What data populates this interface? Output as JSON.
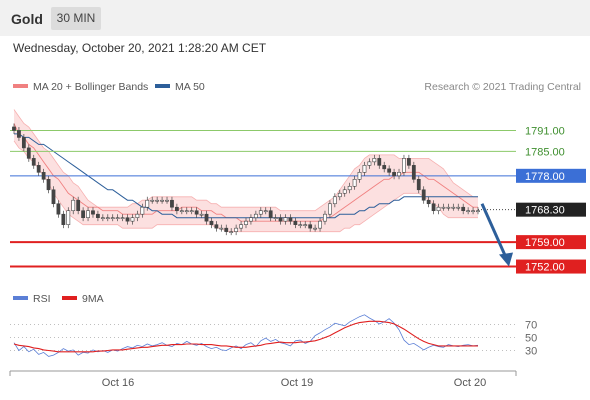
{
  "header": {
    "title": "Gold",
    "timeframe": "30 MIN"
  },
  "datetime": "Wednesday, October 20, 2021 1:28:20 AM CET",
  "legend": {
    "bollinger_label": "MA 20 + Bollinger Bands",
    "ma50_label": "MA 50",
    "credit": "Research © 2021 Trading Central",
    "rsi_label": "RSI",
    "rsi_ma_label": "9MA"
  },
  "colors": {
    "bollinger": "#f08080",
    "ma50": "#2d5f9a",
    "resistance": "#8cc96a",
    "pivot": "#3b6fd6",
    "support": "#e02020",
    "rsi": "#5b7fd6",
    "rsi_ma": "#e02020"
  },
  "chart_data": [
    {
      "type": "candlestick",
      "title": "Gold 30 MIN",
      "x_ticks": [
        "Oct 16",
        "Oct 19",
        "Oct 20"
      ],
      "ylim": [
        1747,
        1796
      ],
      "current_price": 1768.3,
      "levels": [
        {
          "label": "1791.00",
          "value": 1791.0,
          "kind": "resistance"
        },
        {
          "label": "1785.00",
          "value": 1785.0,
          "kind": "resistance"
        },
        {
          "label": "1778.00",
          "value": 1778.0,
          "kind": "pivot"
        },
        {
          "label": "1768.30",
          "value": 1768.3,
          "kind": "last"
        },
        {
          "label": "1759.00",
          "value": 1759.0,
          "kind": "support"
        },
        {
          "label": "1752.00",
          "value": 1752.0,
          "kind": "support"
        }
      ],
      "close": [
        1791,
        1789,
        1786,
        1783,
        1781,
        1779,
        1777,
        1774,
        1770,
        1767,
        1764,
        1768,
        1771,
        1768,
        1766,
        1768,
        1767,
        1766,
        1766,
        1766,
        1766,
        1766,
        1766,
        1765,
        1766,
        1767,
        1769,
        1771,
        1771,
        1771,
        1771,
        1771,
        1769,
        1768,
        1768,
        1768,
        1768,
        1767,
        1767,
        1765,
        1764,
        1763,
        1763,
        1762,
        1762,
        1763,
        1764,
        1765,
        1766,
        1767,
        1768,
        1768,
        1766,
        1766,
        1765,
        1766,
        1765,
        1764,
        1764,
        1764,
        1763,
        1763,
        1765,
        1767,
        1770,
        1772,
        1773,
        1774,
        1775,
        1777,
        1779,
        1781,
        1782,
        1783,
        1781,
        1780,
        1779,
        1778,
        1779,
        1783,
        1781,
        1777,
        1774,
        1771,
        1770,
        1768,
        1769,
        1769,
        1769,
        1769,
        1769,
        1768,
        1768,
        1768,
        1768
      ],
      "ma20": [
        1793,
        1790,
        1789,
        1787,
        1786,
        1784,
        1782,
        1780,
        1778,
        1777,
        1775,
        1773,
        1772,
        1771,
        1770,
        1769,
        1769,
        1769,
        1768,
        1768,
        1768,
        1768,
        1767,
        1767,
        1767,
        1767,
        1767,
        1767,
        1767,
        1768,
        1768,
        1768,
        1768,
        1768,
        1769,
        1769,
        1769,
        1769,
        1768,
        1768,
        1768,
        1767,
        1767,
        1766,
        1766,
        1766,
        1765,
        1765,
        1765,
        1765,
        1765,
        1765,
        1765,
        1765,
        1765,
        1765,
        1765,
        1765,
        1765,
        1765,
        1765,
        1765,
        1765,
        1766,
        1766,
        1767,
        1768,
        1769,
        1770,
        1771,
        1772,
        1773,
        1774,
        1775,
        1776,
        1777,
        1777,
        1778,
        1778,
        1779,
        1779,
        1779,
        1779,
        1778,
        1777,
        1777,
        1776,
        1775,
        1774,
        1773,
        1772,
        1771,
        1770,
        1769,
        1769
      ],
      "bb_upper": [
        1797,
        1795,
        1793,
        1792,
        1790,
        1788,
        1786,
        1785,
        1783,
        1781,
        1779,
        1778,
        1776,
        1775,
        1773,
        1771,
        1770,
        1769,
        1769,
        1769,
        1769,
        1769,
        1769,
        1769,
        1770,
        1770,
        1771,
        1771,
        1772,
        1772,
        1772,
        1772,
        1772,
        1772,
        1772,
        1772,
        1772,
        1771,
        1771,
        1771,
        1770,
        1770,
        1769,
        1769,
        1769,
        1769,
        1769,
        1769,
        1769,
        1769,
        1769,
        1769,
        1769,
        1769,
        1768,
        1768,
        1768,
        1768,
        1768,
        1768,
        1768,
        1768,
        1769,
        1770,
        1771,
        1772,
        1774,
        1776,
        1778,
        1780,
        1781,
        1783,
        1784,
        1784,
        1784,
        1784,
        1784,
        1784,
        1783,
        1783,
        1783,
        1783,
        1783,
        1783,
        1783,
        1782,
        1781,
        1780,
        1778,
        1776,
        1775,
        1774,
        1773,
        1772,
        1772
      ],
      "bb_lower": [
        1788,
        1786,
        1785,
        1783,
        1782,
        1780,
        1778,
        1776,
        1773,
        1771,
        1769,
        1767,
        1766,
        1765,
        1764,
        1764,
        1764,
        1764,
        1764,
        1764,
        1764,
        1764,
        1763,
        1763,
        1763,
        1763,
        1763,
        1763,
        1763,
        1764,
        1764,
        1764,
        1764,
        1764,
        1764,
        1764,
        1764,
        1764,
        1764,
        1764,
        1764,
        1763,
        1763,
        1762,
        1762,
        1762,
        1762,
        1762,
        1762,
        1762,
        1762,
        1762,
        1762,
        1762,
        1762,
        1762,
        1762,
        1762,
        1762,
        1762,
        1762,
        1762,
        1762,
        1762,
        1762,
        1762,
        1762,
        1763,
        1763,
        1764,
        1764,
        1765,
        1766,
        1767,
        1768,
        1769,
        1770,
        1771,
        1772,
        1773,
        1773,
        1773,
        1773,
        1772,
        1771,
        1770,
        1769,
        1767,
        1766,
        1766,
        1766,
        1766,
        1766,
        1766,
        1766
      ],
      "ma50": [
        1790,
        1790,
        1789,
        1789,
        1788,
        1787,
        1787,
        1786,
        1785,
        1784,
        1783,
        1782,
        1781,
        1780,
        1779,
        1778,
        1777,
        1776,
        1775,
        1774,
        1774,
        1773,
        1772,
        1771,
        1771,
        1770,
        1769,
        1769,
        1768,
        1768,
        1767,
        1767,
        1767,
        1766,
        1766,
        1766,
        1766,
        1766,
        1766,
        1766,
        1766,
        1766,
        1766,
        1766,
        1766,
        1766,
        1766,
        1766,
        1766,
        1766,
        1766,
        1766,
        1766,
        1766,
        1766,
        1766,
        1766,
        1766,
        1766,
        1766,
        1766,
        1766,
        1766,
        1766,
        1766,
        1766,
        1767,
        1767,
        1767,
        1767,
        1768,
        1768,
        1769,
        1769,
        1770,
        1770,
        1770,
        1771,
        1771,
        1772,
        1772,
        1772,
        1772,
        1772,
        1772,
        1772,
        1772,
        1772,
        1772,
        1772,
        1772,
        1772,
        1772,
        1772,
        1772
      ],
      "forecast_arrow": {
        "from": 1770,
        "to": 1752
      }
    },
    {
      "type": "line",
      "title": "RSI",
      "yticks": [
        70,
        50,
        30
      ],
      "ylim": [
        0,
        100
      ],
      "series": [
        {
          "name": "RSI",
          "values": [
            42,
            30,
            36,
            28,
            32,
            24,
            27,
            21,
            23,
            27,
            33,
            29,
            31,
            23,
            27,
            26,
            31,
            28,
            30,
            27,
            31,
            29,
            33,
            36,
            34,
            38,
            36,
            40,
            37,
            39,
            42,
            38,
            36,
            41,
            39,
            44,
            40,
            38,
            41,
            36,
            33,
            35,
            31,
            30,
            34,
            37,
            33,
            39,
            42,
            36,
            45,
            49,
            44,
            47,
            42,
            40,
            37,
            45,
            46,
            41,
            44,
            53,
            57,
            62,
            66,
            72,
            70,
            68,
            74,
            78,
            82,
            85,
            80,
            76,
            71,
            74,
            79,
            72,
            62,
            46,
            39,
            41,
            36,
            31,
            35,
            38,
            36,
            35,
            39,
            37,
            36,
            38,
            39,
            37,
            38
          ]
        },
        {
          "name": "9MA",
          "values": [
            40,
            38,
            37,
            36,
            34,
            33,
            31,
            30,
            29,
            28,
            28,
            28,
            28,
            28,
            28,
            28,
            28,
            29,
            29,
            30,
            31,
            31,
            31,
            32,
            33,
            34,
            35,
            35,
            36,
            37,
            38,
            38,
            39,
            39,
            39,
            40,
            40,
            40,
            39,
            39,
            39,
            38,
            37,
            37,
            36,
            35,
            35,
            35,
            36,
            37,
            38,
            40,
            41,
            42,
            43,
            42,
            42,
            42,
            43,
            43,
            44,
            45,
            47,
            50,
            53,
            57,
            61,
            65,
            68,
            71,
            73,
            74,
            75,
            75,
            75,
            74,
            73,
            71,
            67,
            63,
            58,
            53,
            48,
            44,
            41,
            39,
            37,
            37,
            37,
            37,
            37,
            37,
            37,
            37,
            37
          ]
        }
      ]
    }
  ]
}
